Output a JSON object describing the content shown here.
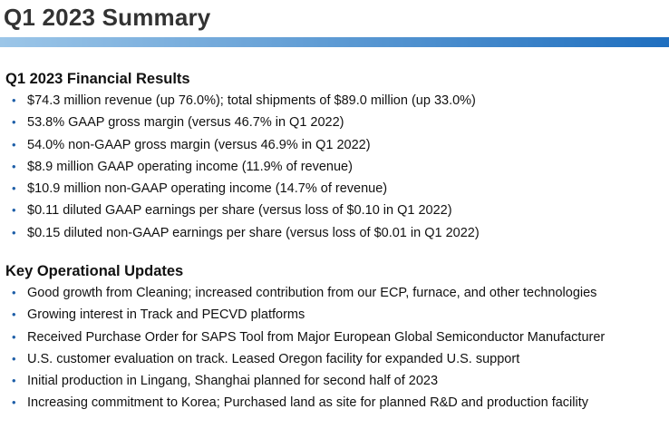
{
  "title": "Q1 2023 Summary",
  "colors": {
    "title_text": "#333333",
    "rule_start": "#9cc6e8",
    "rule_end": "#1f6fbf",
    "bullet": "#1f5fa8"
  },
  "bullet_glyph": "•",
  "financial": {
    "heading": "Q1 2023 Financial Results",
    "items": [
      "$74.3 million revenue (up 76.0%); total shipments of $89.0 million (up 33.0%)",
      "53.8% GAAP gross margin (versus 46.7% in Q1 2022)",
      "54.0% non-GAAP gross margin (versus 46.9% in Q1 2022)",
      "$8.9 million GAAP operating income (11.9% of revenue)",
      "$10.9 million non-GAAP operating income (14.7% of revenue)",
      "$0.11 diluted GAAP earnings per share (versus loss of $0.10 in Q1 2022)",
      "$0.15 diluted non-GAAP earnings per share (versus loss of $0.01 in Q1 2022)"
    ]
  },
  "operational": {
    "heading": "Key Operational Updates",
    "items": [
      "Good growth from Cleaning; increased contribution from our ECP, furnace, and other technologies",
      "Growing interest in Track and PECVD platforms",
      "Received Purchase Order for SAPS Tool from Major European Global Semiconductor Manufacturer",
      "U.S. customer evaluation on track. Leased Oregon facility for expanded U.S. support",
      "Initial production in Lingang, Shanghai planned for second half of 2023",
      "Increasing commitment to Korea; Purchased land as site for planned R&D and production facility"
    ]
  }
}
